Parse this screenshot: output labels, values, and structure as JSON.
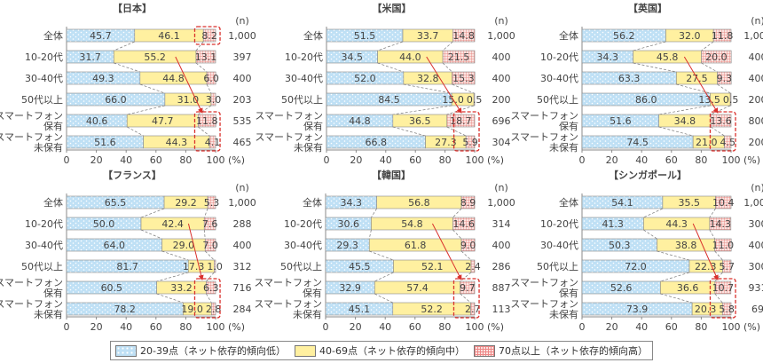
{
  "chart_data": [
    {
      "type": "bar",
      "stacked": true,
      "orientation": "horizontal",
      "title": "【日本】",
      "categories": [
        "全体",
        "10-20代",
        "30-40代",
        "50代以上",
        "スマートフォン\n保有",
        "スマートフォン\n未保有"
      ],
      "series": [
        {
          "name": "20-39点",
          "values": [
            45.7,
            31.7,
            49.3,
            66.0,
            40.6,
            51.6
          ]
        },
        {
          "name": "40-69点",
          "values": [
            46.1,
            55.2,
            44.8,
            31.0,
            47.7,
            44.3
          ]
        },
        {
          "name": "70点以上",
          "values": [
            8.2,
            13.1,
            6.0,
            3.0,
            11.8,
            4.1
          ]
        }
      ],
      "n": [
        "1,000",
        "397",
        "400",
        "203",
        "535",
        "465"
      ],
      "highlight_total": true
    },
    {
      "type": "bar",
      "stacked": true,
      "orientation": "horizontal",
      "title": "【米国】",
      "categories": [
        "全体",
        "10-20代",
        "30-40代",
        "50代以上",
        "スマートフォン\n保有",
        "スマートフォン\n未保有"
      ],
      "series": [
        {
          "name": "20-39点",
          "values": [
            51.5,
            34.5,
            52.0,
            84.5,
            44.8,
            66.8
          ]
        },
        {
          "name": "40-69点",
          "values": [
            33.7,
            44.0,
            32.8,
            15.0,
            36.5,
            27.3
          ]
        },
        {
          "name": "70点以上",
          "values": [
            14.8,
            21.5,
            15.3,
            0.5,
            18.7,
            5.9
          ]
        }
      ],
      "n": [
        "1,000",
        "400",
        "400",
        "200",
        "696",
        "304"
      ],
      "highlight_total": false
    },
    {
      "type": "bar",
      "stacked": true,
      "orientation": "horizontal",
      "title": "【英国】",
      "categories": [
        "全体",
        "10-20代",
        "30-40代",
        "50代以上",
        "スマートフォン\n保有",
        "スマートフォン\n未保有"
      ],
      "series": [
        {
          "name": "20-39点",
          "values": [
            56.2,
            34.3,
            63.3,
            86.0,
            51.6,
            74.5
          ]
        },
        {
          "name": "40-69点",
          "values": [
            32.0,
            45.8,
            27.5,
            13.5,
            34.8,
            21.0
          ]
        },
        {
          "name": "70点以上",
          "values": [
            11.8,
            20.0,
            9.3,
            0.5,
            13.6,
            4.5
          ]
        }
      ],
      "n": [
        "1,000",
        "400",
        "400",
        "200",
        "800",
        "200"
      ],
      "highlight_total": false
    },
    {
      "type": "bar",
      "stacked": true,
      "orientation": "horizontal",
      "title": "【フランス】",
      "categories": [
        "全体",
        "10-20代",
        "30-40代",
        "50代以上",
        "スマートフォン\n保有",
        "スマートフォン\n未保有"
      ],
      "series": [
        {
          "name": "20-39点",
          "values": [
            65.5,
            50.0,
            64.0,
            81.7,
            60.5,
            78.2
          ]
        },
        {
          "name": "40-69点",
          "values": [
            29.2,
            42.4,
            29.0,
            17.3,
            33.2,
            19.0
          ]
        },
        {
          "name": "70点以上",
          "values": [
            5.3,
            7.6,
            7.0,
            1.0,
            6.3,
            2.8
          ]
        }
      ],
      "n": [
        "1,000",
        "288",
        "400",
        "312",
        "716",
        "284"
      ],
      "highlight_total": false
    },
    {
      "type": "bar",
      "stacked": true,
      "orientation": "horizontal",
      "title": "【韓国】",
      "categories": [
        "全体",
        "10-20代",
        "30-40代",
        "50代以上",
        "スマートフォン\n保有",
        "スマートフォン\n未保有"
      ],
      "series": [
        {
          "name": "20-39点",
          "values": [
            34.3,
            30.6,
            29.3,
            45.5,
            32.9,
            45.1
          ]
        },
        {
          "name": "40-69点",
          "values": [
            56.8,
            54.8,
            61.8,
            52.1,
            57.4,
            52.2
          ]
        },
        {
          "name": "70点以上",
          "values": [
            8.9,
            14.6,
            9.0,
            2.4,
            9.7,
            2.7
          ]
        }
      ],
      "n": [
        "1,000",
        "314",
        "400",
        "286",
        "887",
        "113"
      ],
      "highlight_total": false
    },
    {
      "type": "bar",
      "stacked": true,
      "orientation": "horizontal",
      "title": "【シンガポール】",
      "categories": [
        "全体",
        "10-20代",
        "30-40代",
        "50代以上",
        "スマートフォン\n保有",
        "スマートフォン\n未保有"
      ],
      "series": [
        {
          "name": "20-39点",
          "values": [
            54.1,
            41.3,
            50.3,
            72.0,
            52.6,
            73.9
          ]
        },
        {
          "name": "40-69点",
          "values": [
            35.5,
            44.3,
            38.8,
            22.3,
            36.6,
            20.3
          ]
        },
        {
          "name": "70点以上",
          "values": [
            10.4,
            14.3,
            11.0,
            5.7,
            10.7,
            5.8
          ]
        }
      ],
      "n": [
        "1,000",
        "300",
        "400",
        "300",
        "931",
        "69"
      ],
      "highlight_total": false
    }
  ],
  "axis": {
    "ticks": [
      0,
      20,
      40,
      60,
      80,
      100
    ],
    "xlim": [
      0,
      100
    ],
    "unit_label": "(%)",
    "n_label": "(n)"
  },
  "legend": {
    "position": "bottom",
    "items": [
      {
        "label": "20-39点（ネット依存的傾向低）"
      },
      {
        "label": "40-69点（ネット依存的傾向中）"
      },
      {
        "label": "70点以上（ネット依存的傾向高）"
      }
    ]
  },
  "colors": {
    "low": "#bfe0f5",
    "mid": "#fff0a0",
    "high": "#fbe3e0",
    "highlight": "#d9302c"
  }
}
